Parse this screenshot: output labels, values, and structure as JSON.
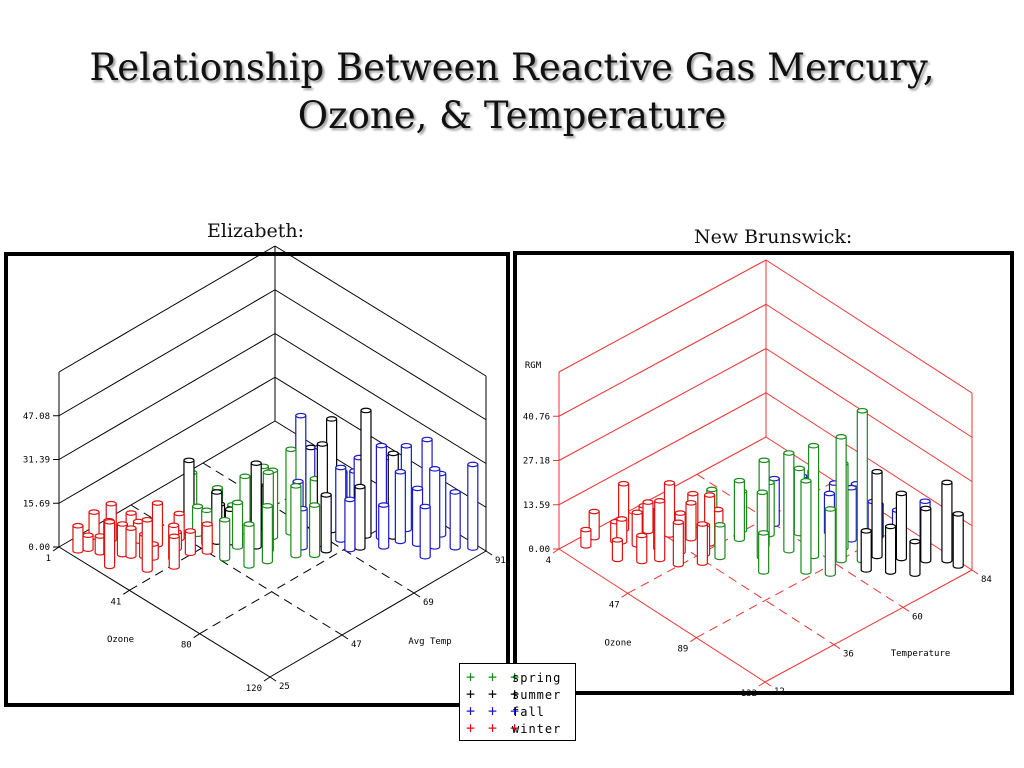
{
  "title": {
    "line1": "Relationship Between Reactive Gas Mercury,",
    "line2": "Ozone, & Temperature"
  },
  "panels": {
    "elizabeth": "Elizabeth:",
    "new_brunswick": "New Brunswick:"
  },
  "legend": [
    {
      "marks": "+ + +",
      "name": "spring",
      "color": "#1a8a1a"
    },
    {
      "marks": "+ + +",
      "name": "summer",
      "color": "#000000"
    },
    {
      "marks": "+ + +",
      "name": "fall",
      "color": "#1a1acc"
    },
    {
      "marks": "+ + +",
      "name": "winter",
      "color": "#dd1111"
    }
  ],
  "chart_data": [
    {
      "type": "3d-bar",
      "title": "",
      "ylabel": "",
      "xlabel": "Ozone",
      "zlabel": "Avg Temp",
      "axis_color": "#000000",
      "y_ticks": [
        "47.08",
        "31.39",
        "15.69",
        "0.00"
      ],
      "x_ticks": [
        "1",
        "41",
        "80",
        "120"
      ],
      "z_ticks": [
        "25",
        "47",
        "69",
        "91"
      ],
      "ylim": [
        0,
        62.77
      ],
      "xlim": [
        1,
        120
      ],
      "zlim": [
        25,
        91
      ],
      "series": [
        {
          "name": "winter",
          "color": "#dd1111",
          "points": [
            [
              8,
              27,
              9
            ],
            [
              15,
              30,
              6
            ],
            [
              22,
              33,
              11
            ],
            [
              29,
              36,
              8
            ],
            [
              12,
              35,
              13
            ],
            [
              20,
              39,
              7
            ],
            [
              27,
              41,
              15
            ],
            [
              34,
              43,
              6
            ],
            [
              18,
              31,
              12
            ],
            [
              25,
              34,
              10
            ],
            [
              32,
              37,
              5
            ],
            [
              38,
              40,
              12
            ],
            [
              40,
              44,
              8
            ],
            [
              44,
              47,
              10
            ],
            [
              6,
              33,
              9
            ],
            [
              14,
              40,
              7
            ],
            [
              30,
              46,
              9
            ],
            [
              36,
              33,
              18
            ],
            [
              24,
              28,
              16
            ],
            [
              10,
              29,
              5
            ],
            [
              42,
              38,
              11
            ]
          ]
        },
        {
          "name": "spring",
          "color": "#1a8a1a",
          "points": [
            [
              26,
              52,
              18
            ],
            [
              35,
              55,
              14
            ],
            [
              45,
              58,
              20
            ],
            [
              55,
              61,
              24
            ],
            [
              40,
              49,
              12
            ],
            [
              50,
              53,
              16
            ],
            [
              60,
              57,
              28
            ],
            [
              70,
              60,
              25
            ],
            [
              33,
              50,
              10
            ],
            [
              48,
              62,
              22
            ],
            [
              58,
              65,
              30
            ],
            [
              65,
              54,
              20
            ],
            [
              75,
              63,
              18
            ],
            [
              52,
              48,
              14
            ],
            [
              43,
              64,
              9
            ],
            [
              38,
              58,
              7
            ],
            [
              62,
              50,
              15
            ],
            [
              68,
              67,
              22
            ]
          ]
        },
        {
          "name": "summer",
          "color": "#000000",
          "points": [
            [
              30,
              49,
              26
            ],
            [
              42,
              51,
              18
            ],
            [
              55,
              56,
              30
            ],
            [
              68,
              72,
              40
            ],
            [
              72,
              67,
              36
            ],
            [
              64,
              74,
              25
            ],
            [
              80,
              76,
              45
            ],
            [
              50,
              62,
              16
            ],
            [
              46,
              53,
              12
            ],
            [
              84,
              72,
              22
            ],
            [
              60,
              70,
              28
            ],
            [
              76,
              66,
              20
            ],
            [
              88,
              80,
              30
            ],
            [
              38,
              54,
              10
            ]
          ]
        },
        {
          "name": "fall",
          "color": "#1a1acc",
          "points": [
            [
              58,
              68,
              40
            ],
            [
              65,
              70,
              30
            ],
            [
              72,
              73,
              22
            ],
            [
              78,
              75,
              28
            ],
            [
              85,
              78,
              33
            ],
            [
              92,
              80,
              25
            ],
            [
              98,
              82,
              20
            ],
            [
              104,
              84,
              28
            ],
            [
              110,
              87,
              20
            ],
            [
              88,
              84,
              30
            ],
            [
              80,
              82,
              24
            ],
            [
              70,
              78,
              18
            ],
            [
              96,
              86,
              34
            ],
            [
              75,
              71,
              26
            ],
            [
              62,
              65,
              20
            ],
            [
              100,
              88,
              22
            ],
            [
              115,
              90,
              30
            ],
            [
              90,
              76,
              15
            ],
            [
              82,
              70,
              18
            ],
            [
              106,
              80,
              18
            ],
            [
              68,
              63,
              14
            ]
          ]
        }
      ]
    },
    {
      "type": "3d-bar",
      "title": "",
      "ylabel": "RGM",
      "xlabel": "Ozone",
      "zlabel": "Temperature",
      "axis_color": "#ee3333",
      "y_ticks": [
        "40.76",
        "27.18",
        "13.59",
        "0.00"
      ],
      "x_ticks": [
        "4",
        "47",
        "89",
        "132"
      ],
      "z_ticks": [
        "12",
        "36",
        "60",
        "84"
      ],
      "ylim": [
        0,
        54.35
      ],
      "xlim": [
        4,
        132
      ],
      "zlim": [
        12,
        84
      ],
      "series": [
        {
          "name": "winter",
          "color": "#dd1111",
          "points": [
            [
              8,
              22,
              8
            ],
            [
              16,
              25,
              6
            ],
            [
              24,
              28,
              10
            ],
            [
              32,
              31,
              12
            ],
            [
              12,
              30,
              14
            ],
            [
              20,
              34,
              9
            ],
            [
              28,
              37,
              16
            ],
            [
              36,
              40,
              11
            ],
            [
              44,
              42,
              15
            ],
            [
              18,
              26,
              7
            ],
            [
              26,
              20,
              6
            ],
            [
              34,
              24,
              8
            ],
            [
              40,
              34,
              12
            ],
            [
              48,
              38,
              9
            ],
            [
              14,
              36,
              5
            ],
            [
              22,
              40,
              7
            ],
            [
              30,
              44,
              10
            ],
            [
              46,
              30,
              13
            ],
            [
              38,
              28,
              18
            ],
            [
              10,
              18,
              5
            ],
            [
              52,
              35,
              12
            ],
            [
              42,
              46,
              8
            ]
          ]
        },
        {
          "name": "spring",
          "color": "#1a8a1a",
          "points": [
            [
              40,
              45,
              14
            ],
            [
              50,
              49,
              18
            ],
            [
              60,
              52,
              26
            ],
            [
              70,
              55,
              30
            ],
            [
              80,
              58,
              34
            ],
            [
              90,
              62,
              38
            ],
            [
              96,
              66,
              46
            ],
            [
              86,
              52,
              28
            ],
            [
              76,
              60,
              24
            ],
            [
              66,
              48,
              20
            ],
            [
              56,
              56,
              16
            ],
            [
              46,
              52,
              12
            ],
            [
              84,
              66,
              26
            ],
            [
              74,
              44,
              12
            ],
            [
              64,
              62,
              20
            ],
            [
              54,
              40,
              10
            ],
            [
              94,
              56,
              20
            ]
          ]
        },
        {
          "name": "summer",
          "color": "#000000",
          "points": [
            [
              98,
              70,
              26
            ],
            [
              106,
              74,
              20
            ],
            [
              114,
              78,
              16
            ],
            [
              120,
              82,
              24
            ],
            [
              126,
              84,
              16
            ],
            [
              110,
              68,
              14
            ],
            [
              102,
              64,
              12
            ],
            [
              118,
              72,
              10
            ]
          ]
        },
        {
          "name": "fall",
          "color": "#1a1acc",
          "points": [
            [
              52,
              60,
              14
            ],
            [
              62,
              64,
              16
            ],
            [
              72,
              68,
              12
            ],
            [
              82,
              70,
              16
            ],
            [
              92,
              72,
              14
            ],
            [
              100,
              76,
              12
            ],
            [
              110,
              80,
              16
            ],
            [
              88,
              76,
              10
            ],
            [
              78,
              74,
              14
            ],
            [
              68,
              72,
              12
            ]
          ]
        }
      ]
    }
  ]
}
